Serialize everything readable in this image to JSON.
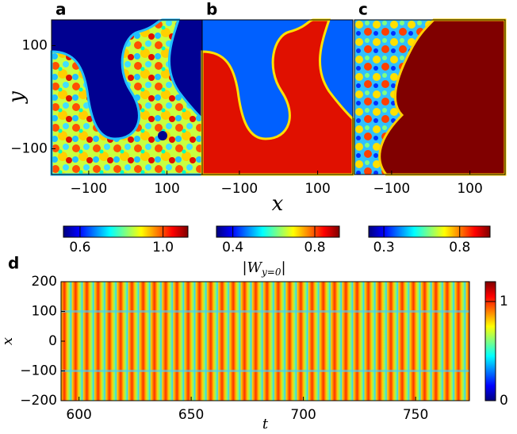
{
  "chart_data": [
    {
      "type": "heatmap",
      "label": "a",
      "ylabel": "y",
      "xlim": [
        -195,
        190
      ],
      "ylim": [
        -150,
        150
      ],
      "xticks": [
        {
          "value": -100,
          "label": "−100"
        },
        100
      ],
      "yticks": [
        100,
        {
          "value": -100,
          "label": "−100"
        }
      ],
      "colorbar": {
        "lim": [
          0.52,
          1.12
        ],
        "ticks": [
          0.6,
          {
            "value": 1,
            "label": "1.0"
          }
        ]
      }
    },
    {
      "type": "heatmap",
      "label": "b",
      "xlabel": "x",
      "xlim": [
        -195,
        190
      ],
      "ylim": [
        -150,
        150
      ],
      "xticks": [
        {
          "value": -100,
          "label": "−100"
        },
        100
      ],
      "colorbar": {
        "lim": [
          0.32,
          0.92
        ],
        "ticks": [
          0.4,
          0.8
        ]
      }
    },
    {
      "type": "heatmap",
      "label": "c",
      "xlim": [
        -195,
        190
      ],
      "ylim": [
        -150,
        150
      ],
      "xticks": [
        {
          "value": -100,
          "label": "−100"
        },
        100
      ],
      "colorbar": {
        "lim": [
          0.2,
          1.0
        ],
        "ticks": [
          0.3,
          0.8
        ]
      }
    },
    {
      "type": "heatmap",
      "label": "d",
      "xlabel": "t",
      "ylabel": "x",
      "title": {
        "base": "|W",
        "sub": "y=0",
        "end": "|"
      },
      "xlim": [
        592,
        774
      ],
      "ylim": [
        -200,
        200
      ],
      "xticks": [
        600,
        650,
        700,
        750
      ],
      "yticks": [
        200,
        100,
        0,
        {
          "value": -100,
          "label": "−100"
        },
        {
          "value": -200,
          "label": "−200"
        }
      ],
      "colorbar": {
        "lim": [
          0,
          1.2
        ],
        "ticks": [
          0,
          1
        ]
      }
    }
  ]
}
